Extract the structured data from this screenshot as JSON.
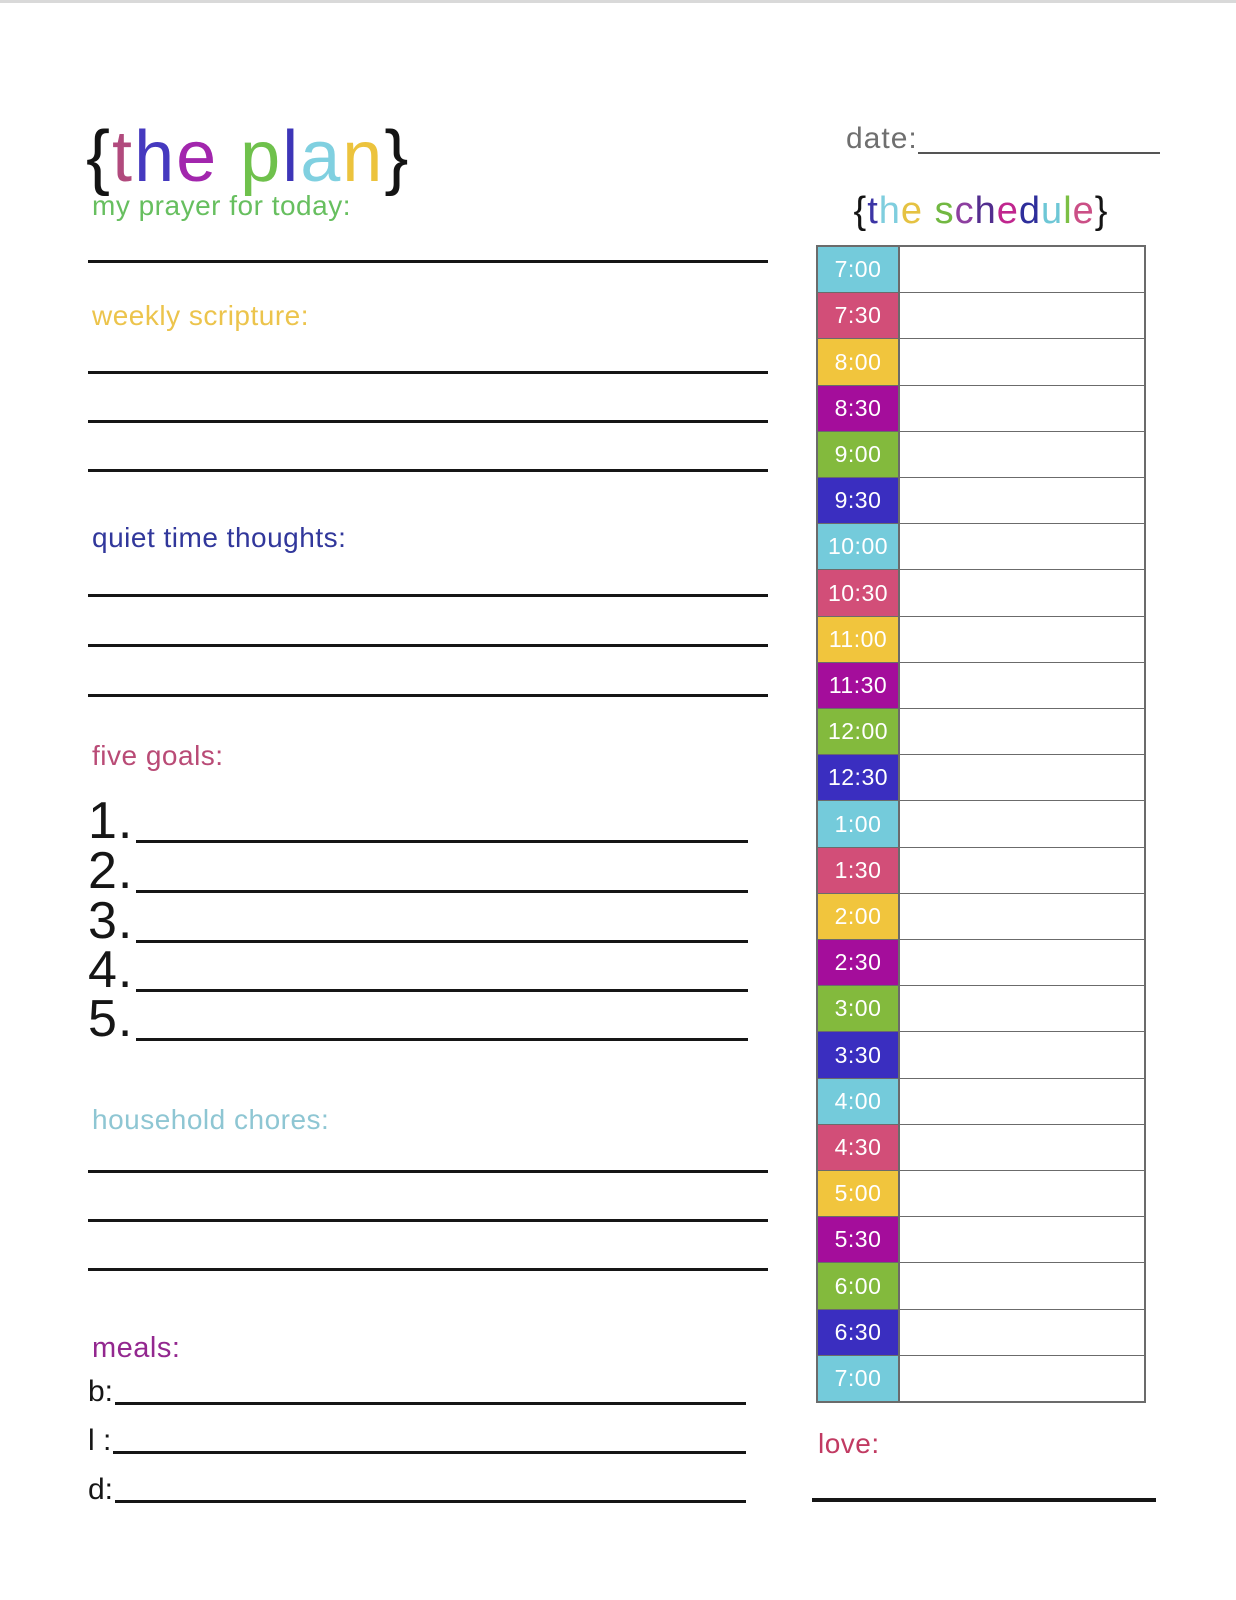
{
  "title": {
    "letters": [
      {
        "ch": "{",
        "color": "#141414"
      },
      {
        "ch": "t",
        "color": "#b14a7d"
      },
      {
        "ch": "h",
        "color": "#4539bf"
      },
      {
        "ch": "e",
        "color": "#a226ad"
      },
      {
        "ch": " ",
        "color": ""
      },
      {
        "ch": "p",
        "color": "#6fc14c"
      },
      {
        "ch": "l",
        "color": "#3d35b8"
      },
      {
        "ch": "a",
        "color": "#80d0e0"
      },
      {
        "ch": "n",
        "color": "#ecc33d"
      },
      {
        "ch": "}",
        "color": "#141414"
      }
    ]
  },
  "header_right": {
    "date_label": "date:"
  },
  "schedule": {
    "heading_letters": [
      {
        "ch": "{",
        "color": "#141414"
      },
      {
        "ch": "t",
        "color": "#3c35a5"
      },
      {
        "ch": "h",
        "color": "#7fcede"
      },
      {
        "ch": "e",
        "color": "#e5c242"
      },
      {
        "ch": " ",
        "color": ""
      },
      {
        "ch": "s",
        "color": "#72b842"
      },
      {
        "ch": "c",
        "color": "#8d3fa0"
      },
      {
        "ch": "h",
        "color": "#522d8e"
      },
      {
        "ch": "e",
        "color": "#c0268e"
      },
      {
        "ch": "d",
        "color": "#2e2e9b"
      },
      {
        "ch": "u",
        "color": "#6ec7d6"
      },
      {
        "ch": "l",
        "color": "#7cbf44"
      },
      {
        "ch": "e",
        "color": "#cb4f86"
      },
      {
        "ch": "}",
        "color": "#141414"
      }
    ],
    "rows": [
      {
        "time": "7:00",
        "color": "#74cbdb"
      },
      {
        "time": "7:30",
        "color": "#d24e78"
      },
      {
        "time": "8:00",
        "color": "#f1c53d"
      },
      {
        "time": "8:30",
        "color": "#a40d9b"
      },
      {
        "time": "9:00",
        "color": "#83ba3d"
      },
      {
        "time": "9:30",
        "color": "#3a2ec0"
      },
      {
        "time": "10:00",
        "color": "#74cbdb"
      },
      {
        "time": "10:30",
        "color": "#d24e78"
      },
      {
        "time": "11:00",
        "color": "#f1c53d"
      },
      {
        "time": "11:30",
        "color": "#a40d9b"
      },
      {
        "time": "12:00",
        "color": "#83ba3d"
      },
      {
        "time": "12:30",
        "color": "#3a2ec0"
      },
      {
        "time": "1:00",
        "color": "#74cbdb"
      },
      {
        "time": "1:30",
        "color": "#d24e78"
      },
      {
        "time": "2:00",
        "color": "#f1c53d"
      },
      {
        "time": "2:30",
        "color": "#a40d9b"
      },
      {
        "time": "3:00",
        "color": "#83ba3d"
      },
      {
        "time": "3:30",
        "color": "#3a2ec0"
      },
      {
        "time": "4:00",
        "color": "#74cbdb"
      },
      {
        "time": "4:30",
        "color": "#d24e78"
      },
      {
        "time": "5:00",
        "color": "#f1c53d"
      },
      {
        "time": "5:30",
        "color": "#a40d9b"
      },
      {
        "time": "6:00",
        "color": "#83ba3d"
      },
      {
        "time": "6:30",
        "color": "#3a2ec0"
      },
      {
        "time": "7:00",
        "color": "#74cbdb"
      }
    ]
  },
  "sections": {
    "prayer": {
      "label": "my prayer for today:",
      "color": "#67bf5f"
    },
    "scripture": {
      "label": "weekly scripture:",
      "color": "#ecc44c"
    },
    "quiet": {
      "label": "quiet time thoughts:",
      "color": "#31379b"
    },
    "goals": {
      "label": "five goals:",
      "color": "#b94b76",
      "items": [
        "1.",
        "2.",
        "3.",
        "4.",
        "5."
      ]
    },
    "chores": {
      "label": "household chores:",
      "color": "#8ec6d3"
    },
    "meals": {
      "label": "meals:",
      "color": "#93278f",
      "items": [
        "b:",
        "l :",
        "d:"
      ]
    },
    "love": {
      "label": "love:",
      "color": "#c13a62"
    }
  }
}
